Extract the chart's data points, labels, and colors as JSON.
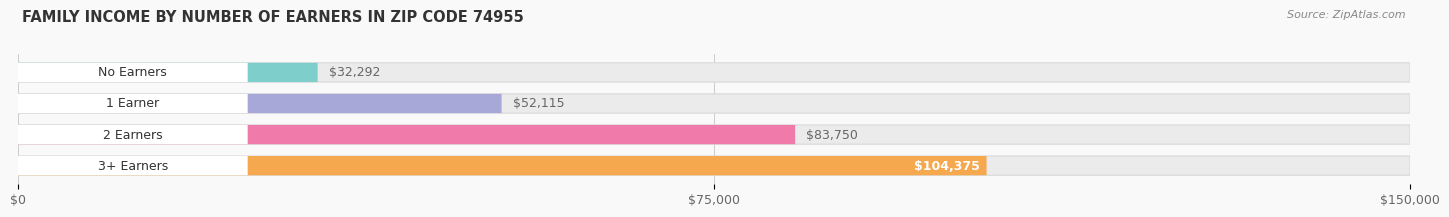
{
  "title": "FAMILY INCOME BY NUMBER OF EARNERS IN ZIP CODE 74955",
  "source": "Source: ZipAtlas.com",
  "categories": [
    "No Earners",
    "1 Earner",
    "2 Earners",
    "3+ Earners"
  ],
  "values": [
    32292,
    52115,
    83750,
    104375
  ],
  "bar_colors": [
    "#7ecfcb",
    "#a8a8d8",
    "#f07aaa",
    "#f5a84e"
  ],
  "bar_bg_color": "#ebebeb",
  "value_labels": [
    "$32,292",
    "$52,115",
    "$83,750",
    "$104,375"
  ],
  "x_ticks": [
    0,
    75000,
    150000
  ],
  "x_tick_labels": [
    "$0",
    "$75,000",
    "$150,000"
  ],
  "xlim": [
    0,
    150000
  ],
  "title_fontsize": 10.5,
  "source_fontsize": 8,
  "cat_label_fontsize": 9,
  "value_fontsize": 9,
  "bar_height": 0.62,
  "bar_gap": 0.38,
  "background_color": "#f9f9f9",
  "label_bg_color": "#ffffff",
  "value_inside_color": "#ffffff",
  "value_outside_color": "#666666"
}
